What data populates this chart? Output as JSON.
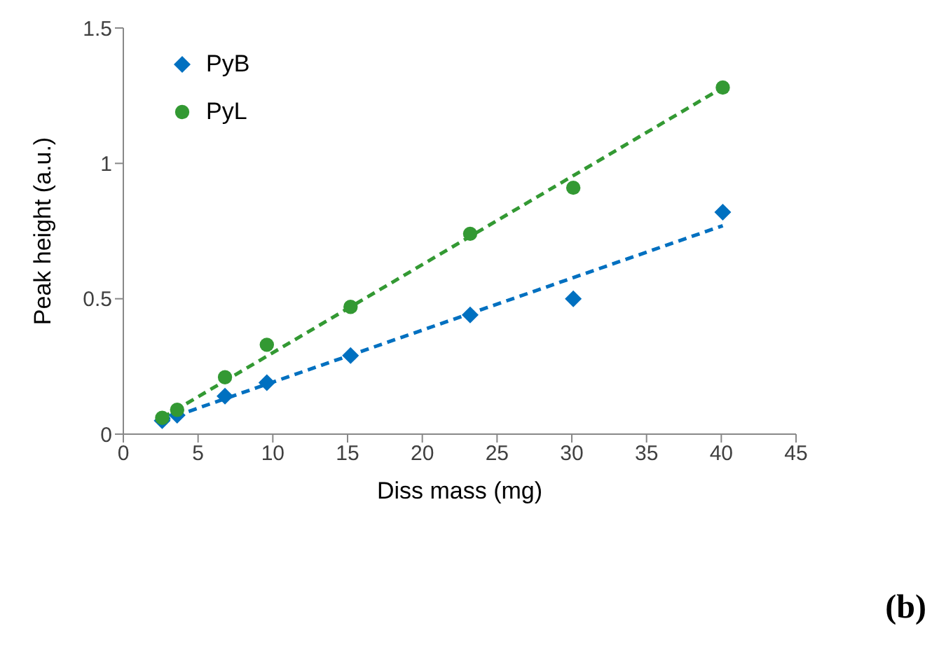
{
  "chart_data": {
    "type": "scatter",
    "xlabel": "Diss mass (mg)",
    "ylabel": "Peak height (a.u.)",
    "xlim": [
      0,
      45
    ],
    "xticks": [
      0,
      5,
      10,
      15,
      20,
      25,
      30,
      35,
      40,
      45
    ],
    "ylim": [
      0,
      1.5
    ],
    "yticks": [
      0,
      0.5,
      1,
      1.5
    ],
    "grid": false,
    "legend": "top left",
    "annotations": [
      "(b)"
    ],
    "series": [
      {
        "name": "PyB",
        "color": "#0070c0",
        "marker": "diamond",
        "x": [
          2.6,
          3.6,
          6.8,
          9.6,
          15.2,
          23.2,
          30.1,
          40.1
        ],
        "values": [
          0.05,
          0.07,
          0.14,
          0.19,
          0.29,
          0.44,
          0.5,
          0.82
        ]
      },
      {
        "name": "PyL",
        "color": "#339933",
        "marker": "circle",
        "x": [
          2.6,
          3.6,
          6.8,
          9.6,
          15.2,
          23.2,
          30.1,
          40.1
        ],
        "values": [
          0.06,
          0.09,
          0.21,
          0.33,
          0.47,
          0.74,
          0.91,
          1.28
        ]
      },
      {
        "type": "line",
        "color": "#0070c0",
        "line_style": "dashed",
        "marker": "none",
        "x": [
          2.6,
          40.1
        ],
        "values": [
          0.05,
          0.77
        ]
      },
      {
        "type": "line",
        "color": "#339933",
        "line_style": "dashed",
        "marker": "none",
        "x": [
          2.6,
          40.1
        ],
        "values": [
          0.06,
          1.28
        ]
      }
    ]
  }
}
